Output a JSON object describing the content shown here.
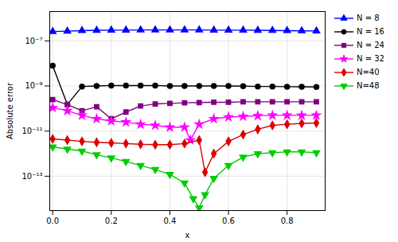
{
  "chart_data": {
    "type": "line",
    "xlabel": "x",
    "ylabel": "Absolute error",
    "log": "y",
    "grid": true,
    "legend": "right",
    "xlim": [
      -0.01,
      0.93
    ],
    "ylim": [
      3e-15,
      2e-06
    ],
    "xticks": [
      {
        "value": 0,
        "label": "0.0"
      },
      0.2,
      0.4,
      0.6,
      0.8
    ],
    "yticks": [
      {
        "value": 1e-13,
        "label": "10⁻¹³"
      },
      {
        "value": 1e-11,
        "label": "10⁻¹¹"
      },
      {
        "value": 1e-09,
        "label": "10⁻⁹"
      },
      {
        "value": 1e-07,
        "label": "10⁻⁷"
      }
    ],
    "series": [
      {
        "name": "N = 8",
        "color": "#0000FF",
        "marker": "triangle-up",
        "x": [
          0.0,
          0.05,
          0.1,
          0.15,
          0.2,
          0.25,
          0.3,
          0.35,
          0.4,
          0.45,
          0.5,
          0.55,
          0.6,
          0.65,
          0.7,
          0.75,
          0.8,
          0.85,
          0.9
        ],
        "values": [
          2.6e-07,
          2.7e-07,
          2.85e-07,
          2.95e-07,
          3e-07,
          3e-07,
          3.05e-07,
          3.05e-07,
          3.05e-07,
          3.05e-07,
          3.05e-07,
          3e-07,
          3e-07,
          3e-07,
          2.95e-07,
          2.9e-07,
          2.85e-07,
          2.8e-07,
          2.75e-07
        ]
      },
      {
        "name": "N = 16",
        "color": "#000000",
        "marker": "circle",
        "x": [
          0.0,
          0.05,
          0.1,
          0.15,
          0.2,
          0.25,
          0.3,
          0.35,
          0.4,
          0.45,
          0.5,
          0.55,
          0.6,
          0.65,
          0.7,
          0.75,
          0.8,
          0.85,
          0.9
        ],
        "values": [
          8e-09,
          1.5e-10,
          9.5e-10,
          1e-09,
          1.05e-09,
          1.05e-09,
          1.05e-09,
          1.05e-09,
          1e-09,
          1e-09,
          1e-09,
          1e-09,
          1e-09,
          9.8e-10,
          9.5e-10,
          9.5e-10,
          9.3e-10,
          9.2e-10,
          9e-10
        ]
      },
      {
        "name": "N = 24",
        "color": "#800080",
        "marker": "square",
        "x": [
          0.0,
          0.05,
          0.1,
          0.15,
          0.2,
          0.25,
          0.3,
          0.35,
          0.4,
          0.45,
          0.5,
          0.55,
          0.6,
          0.65,
          0.7,
          0.75,
          0.8,
          0.85,
          0.9
        ],
        "values": [
          2.5e-10,
          1.5e-10,
          8e-11,
          1.2e-10,
          3.5e-11,
          7e-11,
          1.3e-10,
          1.6e-10,
          1.7e-10,
          1.8e-10,
          1.85e-10,
          1.9e-10,
          1.9e-10,
          2e-10,
          2e-10,
          2e-10,
          2e-10,
          2e-10,
          2e-10
        ]
      },
      {
        "name": "N = 32",
        "color": "#FF00FF",
        "marker": "star",
        "x": [
          0.0,
          0.05,
          0.1,
          0.15,
          0.2,
          0.25,
          0.3,
          0.35,
          0.4,
          0.45,
          0.47,
          0.5,
          0.55,
          0.6,
          0.65,
          0.7,
          0.75,
          0.8,
          0.85,
          0.9
        ],
        "values": [
          1.1e-10,
          8e-11,
          5e-11,
          3.5e-11,
          2.8e-11,
          2.5e-11,
          2e-11,
          1.8e-11,
          1.5e-11,
          1.5e-11,
          4e-12,
          2e-11,
          3.5e-11,
          4.2e-11,
          4.5e-11,
          4.8e-11,
          5e-11,
          5e-11,
          5e-11,
          5e-11
        ]
      },
      {
        "name": "N=40",
        "color": "#DD0000",
        "marker": "diamond",
        "x": [
          0.0,
          0.05,
          0.1,
          0.15,
          0.2,
          0.25,
          0.3,
          0.35,
          0.4,
          0.45,
          0.5,
          0.52,
          0.55,
          0.6,
          0.65,
          0.7,
          0.75,
          0.8,
          0.85,
          0.9
        ],
        "values": [
          4.5e-12,
          4e-12,
          3.5e-12,
          3.2e-12,
          3e-12,
          2.8e-12,
          2.6e-12,
          2.5e-12,
          2.5e-12,
          2.8e-12,
          4e-12,
          1.5e-13,
          1e-12,
          3.5e-12,
          7e-12,
          1.2e-11,
          1.8e-11,
          2e-11,
          2.2e-11,
          2.3e-11
        ]
      },
      {
        "name": "N=48",
        "color": "#00CC00",
        "marker": "triangle-down",
        "x": [
          0.0,
          0.05,
          0.1,
          0.15,
          0.2,
          0.25,
          0.3,
          0.35,
          0.4,
          0.45,
          0.48,
          0.5,
          0.52,
          0.55,
          0.6,
          0.65,
          0.7,
          0.75,
          0.8,
          0.85,
          0.9
        ],
        "values": [
          2e-12,
          1.6e-12,
          1.3e-12,
          9e-13,
          6.5e-13,
          4.5e-13,
          3e-13,
          2e-13,
          1.2e-13,
          5e-14,
          1e-14,
          4e-15,
          1.5e-14,
          8e-14,
          3e-13,
          7e-13,
          1e-12,
          1.1e-12,
          1.2e-12,
          1.2e-12,
          1.1e-12
        ]
      }
    ]
  }
}
